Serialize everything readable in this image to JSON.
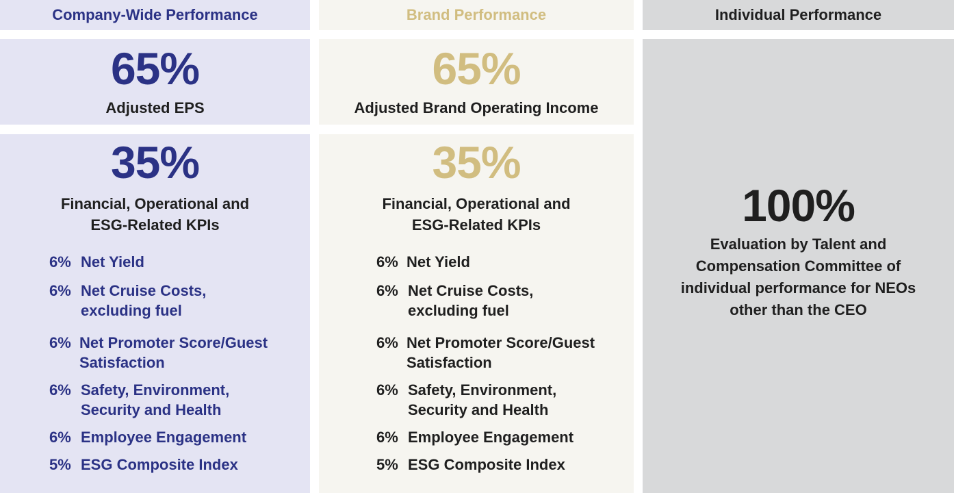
{
  "columns": {
    "company": {
      "header": "Company-Wide Performance",
      "primary": {
        "pct": "65%",
        "label": "Adjusted EPS"
      },
      "secondary": {
        "pct": "35%",
        "label": "Financial, Operational and\nESG-Related KPIs"
      },
      "kpis": [
        {
          "pct": "6%",
          "label": "Net Yield"
        },
        {
          "pct": "6%",
          "label": "Net Cruise Costs,\nexcluding fuel"
        },
        {
          "pct": "6%",
          "label": "Net Promoter Score/Guest\nSatisfaction"
        },
        {
          "pct": "6%",
          "label": "Safety, Environment,\nSecurity and Health"
        },
        {
          "pct": "6%",
          "label": "Employee Engagement"
        },
        {
          "pct": "5%",
          "label": "ESG Composite Index"
        }
      ]
    },
    "brand": {
      "header": "Brand Performance",
      "primary": {
        "pct": "65%",
        "label": "Adjusted Brand Operating Income"
      },
      "secondary": {
        "pct": "35%",
        "label": "Financial, Operational and\nESG-Related KPIs"
      },
      "kpis": [
        {
          "pct": "6%",
          "label": "Net Yield"
        },
        {
          "pct": "6%",
          "label": "Net Cruise Costs,\nexcluding fuel"
        },
        {
          "pct": "6%",
          "label": "Net Promoter Score/Guest\nSatisfaction"
        },
        {
          "pct": "6%",
          "label": "Safety, Environment,\nSecurity and Health"
        },
        {
          "pct": "6%",
          "label": "Employee Engagement"
        },
        {
          "pct": "5%",
          "label": "ESG Composite Index"
        }
      ]
    },
    "individual": {
      "header": "Individual Performance",
      "pct": "100%",
      "label": "Evaluation by Talent and\nCompensation Committee of\nindividual performance for NEOs\nother than the CEO"
    }
  },
  "colors": {
    "company_accent": "#2b3285",
    "brand_accent": "#d1bd80",
    "individual_text": "#1f1f1f"
  }
}
